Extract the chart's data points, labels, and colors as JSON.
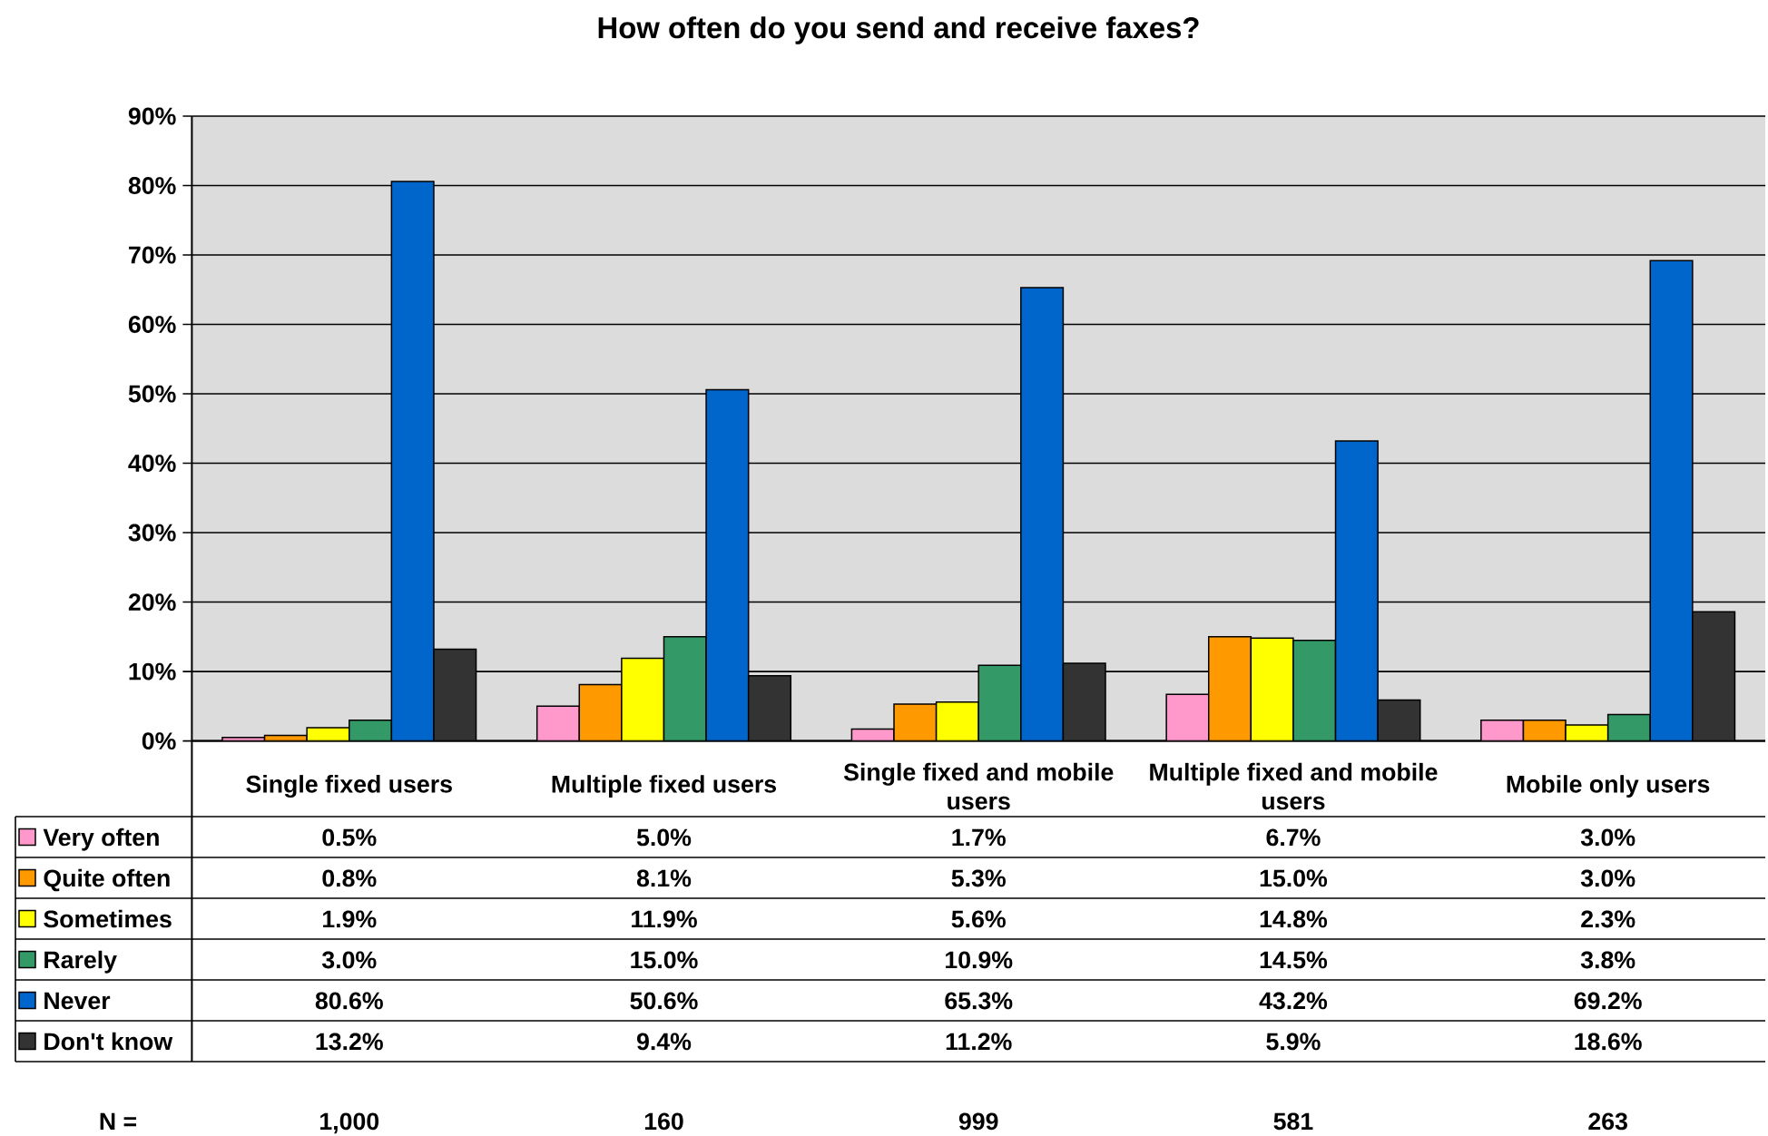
{
  "chart_data": {
    "type": "bar",
    "title": "How often do you send and receive faxes?",
    "categories": [
      "Single fixed users",
      "Multiple fixed users",
      "Single fixed and mobile users",
      "Multiple fixed and mobile users",
      "Mobile only users"
    ],
    "series": [
      {
        "name": "Very often",
        "color": "#ff99cc",
        "values": [
          0.5,
          5.0,
          1.7,
          6.7,
          3.0
        ],
        "value_labels": [
          "0.5%",
          "5.0%",
          "1.7%",
          "6.7%",
          "3.0%"
        ]
      },
      {
        "name": "Quite often",
        "color": "#ff9900",
        "values": [
          0.8,
          8.1,
          5.3,
          15.0,
          3.0
        ],
        "value_labels": [
          "0.8%",
          "8.1%",
          "5.3%",
          "15.0%",
          "3.0%"
        ]
      },
      {
        "name": "Sometimes",
        "color": "#ffff00",
        "values": [
          1.9,
          11.9,
          5.6,
          14.8,
          2.3
        ],
        "value_labels": [
          "1.9%",
          "11.9%",
          "5.6%",
          "14.8%",
          "2.3%"
        ]
      },
      {
        "name": "Rarely",
        "color": "#339966",
        "values": [
          3.0,
          15.0,
          10.9,
          14.5,
          3.8
        ],
        "value_labels": [
          "3.0%",
          "15.0%",
          "10.9%",
          "14.5%",
          "3.8%"
        ]
      },
      {
        "name": "Never",
        "color": "#0066cc",
        "values": [
          80.6,
          50.6,
          65.3,
          43.2,
          69.2
        ],
        "value_labels": [
          "80.6%",
          "50.6%",
          "65.3%",
          "43.2%",
          "69.2%"
        ]
      },
      {
        "name": "Don't know",
        "color": "#333333",
        "values": [
          13.2,
          9.4,
          11.2,
          5.9,
          18.6
        ],
        "value_labels": [
          "13.2%",
          "9.4%",
          "11.2%",
          "5.9%",
          "18.6%"
        ]
      }
    ],
    "ylim": [
      0,
      90
    ],
    "yticks": [
      {
        "value": 0,
        "label": "0%"
      },
      {
        "value": 10,
        "label": "10%"
      },
      {
        "value": 20,
        "label": "20%"
      },
      {
        "value": 30,
        "label": "30%"
      },
      {
        "value": 40,
        "label": "40%"
      },
      {
        "value": 50,
        "label": "50%"
      },
      {
        "value": 60,
        "label": "60%"
      },
      {
        "value": 70,
        "label": "70%"
      },
      {
        "value": 80,
        "label": "80%"
      },
      {
        "value": 90,
        "label": "90%"
      }
    ],
    "grid": "y",
    "legend": "bottom",
    "annotations": [
      "N =",
      "1,000",
      "160",
      "999",
      "581",
      "263"
    ]
  }
}
